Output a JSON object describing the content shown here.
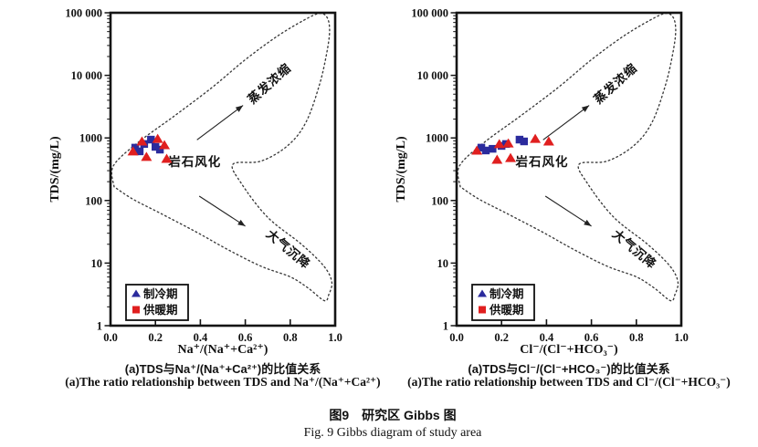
{
  "figure": {
    "caption_zh": "图9　研究区 Gibbs 图",
    "caption_en": "Fig. 9  Gibbs diagram of study area"
  },
  "colors": {
    "cooling_blue": "#2b2b9d",
    "heating_red": "#e01f1f",
    "boundary": "#3a3a3a",
    "axis": "#141414"
  },
  "gibbs_boundary": [
    [
      0.016,
      2.22
    ],
    [
      0.012,
      2.55
    ],
    [
      0.12,
      2.92
    ],
    [
      0.28,
      3.34
    ],
    [
      0.45,
      3.8
    ],
    [
      0.6,
      4.25
    ],
    [
      0.74,
      4.62
    ],
    [
      0.86,
      4.88
    ],
    [
      0.93,
      4.99
    ],
    [
      0.965,
      4.92
    ],
    [
      0.975,
      4.7
    ],
    [
      0.962,
      4.35
    ],
    [
      0.93,
      3.85
    ],
    [
      0.87,
      3.25
    ],
    [
      0.79,
      2.88
    ],
    [
      0.67,
      2.63
    ],
    [
      0.545,
      2.58
    ],
    [
      0.585,
      2.26
    ],
    [
      0.7,
      1.73
    ],
    [
      0.85,
      1.3
    ],
    [
      0.95,
      0.95
    ],
    [
      0.985,
      0.7
    ],
    [
      0.972,
      0.5
    ],
    [
      0.952,
      0.4
    ],
    [
      0.88,
      0.6
    ],
    [
      0.8,
      0.78
    ],
    [
      0.67,
      0.95
    ],
    [
      0.52,
      1.22
    ],
    [
      0.38,
      1.5
    ],
    [
      0.22,
      1.8
    ],
    [
      0.1,
      2.02
    ],
    [
      0.016,
      2.22
    ]
  ],
  "chart_data": [
    {
      "id": "a-left",
      "type": "scatter",
      "xlabel": "Na⁺/(Na⁺+Ca²⁺)",
      "ylabel": "TDS/(mg/L)",
      "xlim": [
        0.0,
        1.0
      ],
      "ylim": [
        1,
        100000
      ],
      "y_scale": "log",
      "grid": false,
      "xticks": [
        {
          "v": 0.0,
          "label": "0.0"
        },
        {
          "v": 0.2,
          "label": "0.2"
        },
        {
          "v": 0.4,
          "label": "0.4"
        },
        {
          "v": 0.6,
          "label": "0.6"
        },
        {
          "v": 0.8,
          "label": "0.8"
        },
        {
          "v": 1.0,
          "label": "1.0"
        }
      ],
      "yticks": [
        {
          "v": 1,
          "label": "1"
        },
        {
          "v": 10,
          "label": "10"
        },
        {
          "v": 100,
          "label": "100"
        },
        {
          "v": 1000,
          "label": "1000"
        },
        {
          "v": 10000,
          "label": "10 000"
        },
        {
          "v": 100000,
          "label": "100 000"
        }
      ],
      "caption_zh": "(a)TDS与Na⁺/(Na⁺+Ca²⁺)的比值关系",
      "caption_en": "(a)The ratio relationship between TDS and Na⁺/(Na⁺+Ca²⁺)",
      "series": [
        {
          "name": "制冷期",
          "color": "#2b2b9d",
          "plot_marker": "square",
          "legend_marker": "triangle",
          "x": [
            0.11,
            0.13,
            0.15,
            0.18,
            0.2,
            0.22
          ],
          "y": [
            700,
            610,
            800,
            940,
            720,
            650
          ]
        },
        {
          "name": "供暖期",
          "color": "#e01f1f",
          "plot_marker": "triangle",
          "legend_marker": "square",
          "x": [
            0.1,
            0.14,
            0.16,
            0.21,
            0.24,
            0.25
          ],
          "y": [
            610,
            880,
            500,
            970,
            770,
            465
          ]
        }
      ],
      "annotations": {
        "evaporation": {
          "text": "蒸发浓缩",
          "x": 0.72,
          "logy": 3.82,
          "rotate": -42
        },
        "rock": {
          "text": "岩石风化",
          "x": 0.375,
          "logy": 2.55,
          "rotate": 0
        },
        "precipitation": {
          "text": "大气沉降",
          "x": 0.78,
          "logy": 1.17,
          "rotate": 40
        },
        "arrow_up": {
          "x1": 0.385,
          "logy1": 2.97,
          "x2": 0.59,
          "logy2": 3.52
        },
        "arrow_down": {
          "x1": 0.395,
          "logy1": 2.07,
          "x2": 0.6,
          "logy2": 1.59
        }
      },
      "legend_position": "bottom-left"
    },
    {
      "id": "b-right",
      "type": "scatter",
      "xlabel": "Cl⁻/(Cl⁻+HCO₃⁻)",
      "ylabel": "TDS/(mg/L)",
      "xlim": [
        0.0,
        1.0
      ],
      "ylim": [
        1,
        100000
      ],
      "y_scale": "log",
      "grid": false,
      "xticks": [
        {
          "v": 0.0,
          "label": "0.0"
        },
        {
          "v": 0.2,
          "label": "0.2"
        },
        {
          "v": 0.4,
          "label": "0.4"
        },
        {
          "v": 0.6,
          "label": "0.6"
        },
        {
          "v": 0.8,
          "label": "0.8"
        },
        {
          "v": 1.0,
          "label": "1.0"
        }
      ],
      "yticks": [
        {
          "v": 1,
          "label": "1"
        },
        {
          "v": 10,
          "label": "10"
        },
        {
          "v": 100,
          "label": "100"
        },
        {
          "v": 1000,
          "label": "1000"
        },
        {
          "v": 10000,
          "label": "10 000"
        },
        {
          "v": 100000,
          "label": "100 000"
        }
      ],
      "caption_zh": "(a)TDS与Cl⁻/(Cl⁻+HCO₃⁻)的比值关系",
      "caption_en": "(a)The ratio relationship between TDS and Cl⁻/(Cl⁻+HCO₃⁻)",
      "series": [
        {
          "name": "制冷期",
          "color": "#2b2b9d",
          "plot_marker": "square",
          "legend_marker": "triangle",
          "x": [
            0.11,
            0.13,
            0.16,
            0.2,
            0.22,
            0.28,
            0.3
          ],
          "y": [
            700,
            630,
            670,
            745,
            800,
            940,
            880
          ]
        },
        {
          "name": "供暖期",
          "color": "#e01f1f",
          "plot_marker": "triangle",
          "legend_marker": "square",
          "x": [
            0.09,
            0.18,
            0.19,
            0.23,
            0.24,
            0.35,
            0.41
          ],
          "y": [
            630,
            450,
            800,
            820,
            480,
            970,
            880
          ]
        }
      ],
      "annotations": {
        "evaporation": {
          "text": "蒸发浓缩",
          "x": 0.72,
          "logy": 3.82,
          "rotate": -42
        },
        "rock": {
          "text": "岩石风化",
          "x": 0.38,
          "logy": 2.55,
          "rotate": 0
        },
        "precipitation": {
          "text": "大气沉降",
          "x": 0.78,
          "logy": 1.17,
          "rotate": 40
        },
        "arrow_up": {
          "x1": 0.385,
          "logy1": 2.97,
          "x2": 0.59,
          "logy2": 3.52
        },
        "arrow_down": {
          "x1": 0.395,
          "logy1": 2.07,
          "x2": 0.6,
          "logy2": 1.59
        }
      },
      "legend_position": "bottom-left"
    }
  ]
}
